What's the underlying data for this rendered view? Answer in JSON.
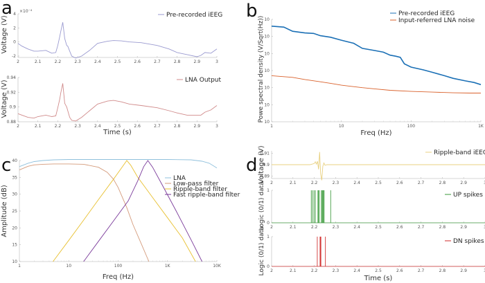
{
  "chart_data": [
    {
      "id": "a1",
      "panel_letter": "a",
      "type": "line",
      "ylabel": "Voltage (V)",
      "xlabel": "",
      "exponent_label": "×10⁻⁴",
      "xlim": [
        2,
        3
      ],
      "ylim": [
        -2.2,
        4
      ],
      "xticks": [
        2,
        2.1,
        2.2,
        2.3,
        2.4,
        2.5,
        2.6,
        2.7,
        2.8,
        2.9,
        3
      ],
      "yticks": [
        -2,
        0,
        2,
        4
      ],
      "legend": "top-right",
      "series": [
        {
          "name": "Pre-recorded iEEG",
          "color": "#9a9ad0",
          "x": [
            2.0,
            2.02,
            2.05,
            2.08,
            2.1,
            2.14,
            2.17,
            2.19,
            2.2,
            2.21,
            2.215,
            2.225,
            2.235,
            2.245,
            2.25,
            2.26,
            2.27,
            2.29,
            2.32,
            2.36,
            2.4,
            2.45,
            2.48,
            2.52,
            2.56,
            2.62,
            2.7,
            2.76,
            2.8,
            2.85,
            2.9,
            2.92,
            2.94,
            2.97,
            3.0
          ],
          "y": [
            -0.2,
            -0.6,
            -1.0,
            -1.3,
            -1.3,
            -1.2,
            -1.6,
            -1.5,
            -0.5,
            0.8,
            1.5,
            2.8,
            0.5,
            -0.5,
            -0.6,
            -1.3,
            -2.0,
            -2.3,
            -2.0,
            -1.2,
            -0.2,
            0.1,
            0.2,
            0.15,
            0.0,
            -0.1,
            -0.5,
            -1.0,
            -1.5,
            -1.8,
            -2.1,
            -1.9,
            -1.5,
            -1.6,
            -1.0
          ]
        }
      ]
    },
    {
      "id": "a2",
      "panel_letter": "",
      "type": "line",
      "ylabel": "Voltage (V)",
      "xlabel": "Time (s)",
      "xlim": [
        2,
        3
      ],
      "ylim": [
        0.88,
        0.94
      ],
      "xticks": [
        2,
        2.1,
        2.2,
        2.3,
        2.4,
        2.5,
        2.6,
        2.7,
        2.8,
        2.9,
        3
      ],
      "yticks": [
        0.88,
        0.9,
        0.92,
        0.94
      ],
      "legend": "top-right",
      "series": [
        {
          "name": "LNA Output",
          "color": "#d08a8a",
          "x": [
            2.0,
            2.02,
            2.05,
            2.08,
            2.1,
            2.14,
            2.17,
            2.19,
            2.2,
            2.21,
            2.215,
            2.225,
            2.235,
            2.245,
            2.25,
            2.26,
            2.27,
            2.29,
            2.32,
            2.36,
            2.4,
            2.45,
            2.48,
            2.52,
            2.56,
            2.62,
            2.7,
            2.76,
            2.8,
            2.85,
            2.9,
            2.92,
            2.94,
            2.97,
            3.0
          ],
          "y": [
            0.891,
            0.889,
            0.886,
            0.885,
            0.887,
            0.889,
            0.887,
            0.888,
            0.899,
            0.911,
            0.919,
            0.932,
            0.905,
            0.9,
            0.895,
            0.886,
            0.882,
            0.881,
            0.886,
            0.895,
            0.904,
            0.908,
            0.909,
            0.907,
            0.904,
            0.902,
            0.899,
            0.895,
            0.892,
            0.889,
            0.889,
            0.889,
            0.893,
            0.896,
            0.902
          ]
        }
      ]
    },
    {
      "id": "b",
      "panel_letter": "b",
      "type": "line",
      "xscale": "log",
      "yscale": "log",
      "ylabel": "Powe spectral density (V/Sqrt(Hz))",
      "xlabel": "Freq (Hz)",
      "xlim": [
        1,
        1000
      ],
      "ylim": [
        1e-08,
        0.01
      ],
      "xticks": [
        1,
        10,
        100,
        1000
      ],
      "xtick_labels": [
        "1",
        "10",
        "100",
        "1K"
      ],
      "yticks": [
        1e-08,
        1e-07,
        1e-06,
        1e-05,
        0.0001,
        0.001,
        0.01
      ],
      "ytick_labels": [
        "10",
        "10",
        "10",
        "10",
        "10",
        "10",
        "10"
      ],
      "legend": "top-right",
      "series": [
        {
          "name": "Pre-recorded iEEG",
          "color": "#1a6fb5",
          "x": [
            1,
            1.5,
            2,
            3,
            4,
            5,
            7,
            10,
            15,
            20,
            30,
            40,
            50,
            60,
            70,
            80,
            100,
            150,
            200,
            300,
            400,
            600,
            800,
            1000
          ],
          "y": [
            0.004,
            0.0035,
            0.002,
            0.0016,
            0.0015,
            0.0011,
            0.0009,
            0.0006,
            0.0004,
            0.0002,
            0.00015,
            0.00012,
            8e-05,
            7e-05,
            6e-05,
            2.5e-05,
            1.6e-05,
            1.1e-05,
            8e-06,
            5e-06,
            3.5e-06,
            2.5e-06,
            2e-06,
            1.5e-06
          ]
        },
        {
          "name": "Input-referred LNA noise",
          "color": "#d9602a",
          "x": [
            1,
            2,
            3,
            5,
            7,
            10,
            20,
            30,
            50,
            100,
            200,
            400,
            700,
            1000
          ],
          "y": [
            5e-06,
            4e-06,
            3e-06,
            2.2e-06,
            1.8e-06,
            1.4e-06,
            1e-06,
            8.5e-07,
            7e-07,
            6e-07,
            5.5e-07,
            5e-07,
            4.8e-07,
            4.8e-07
          ]
        }
      ]
    },
    {
      "id": "c",
      "panel_letter": "c",
      "type": "line",
      "xscale": "log",
      "ylabel": "Amplitude (dB)",
      "xlabel": "Freq (Hz)",
      "xlim": [
        1,
        10000
      ],
      "ylim": [
        10,
        40
      ],
      "xticks": [
        1,
        10,
        100,
        1000,
        10000
      ],
      "xtick_labels": [
        "1",
        "10",
        "100",
        "1K",
        "10K"
      ],
      "yticks": [
        10,
        15,
        20,
        25,
        30,
        35,
        40
      ],
      "legend": "right",
      "series": [
        {
          "name": "LNA",
          "color": "#8fc0dc",
          "x": [
            1,
            1.5,
            2,
            3,
            5,
            10,
            100,
            1000,
            3000,
            5000,
            7000,
            10000
          ],
          "y": [
            38.2,
            39.2,
            39.7,
            40.0,
            40.2,
            40.3,
            40.3,
            40.3,
            40.2,
            39.8,
            39.2,
            37.8
          ]
        },
        {
          "name": "Low-pass filter",
          "color": "#d49a7a",
          "x": [
            1,
            1.5,
            2,
            3,
            5,
            10,
            20,
            40,
            60,
            80,
            100,
            150,
            200,
            300,
            420
          ],
          "y": [
            37.2,
            38.3,
            38.7,
            38.9,
            39.0,
            39.0,
            38.9,
            38.0,
            36.5,
            34.5,
            32.0,
            26.0,
            21.0,
            15.0,
            10.0
          ]
        },
        {
          "name": "Ripple-band filter",
          "color": "#e8c030",
          "x": [
            4.8,
            10,
            20,
            40,
            80,
            120,
            150,
            180,
            250,
            500,
            1000,
            2000,
            3700
          ],
          "y": [
            10,
            16.3,
            22.3,
            28.4,
            34.4,
            38.0,
            40.0,
            38.6,
            35.0,
            29.0,
            23.0,
            17.0,
            10.0
          ]
        },
        {
          "name": "Fast ripple-band filter",
          "color": "#7a3a9a",
          "x": [
            20,
            40,
            80,
            160,
            250,
            330,
            400,
            500,
            800,
            1500,
            3000,
            5000
          ],
          "y": [
            10,
            16.0,
            22.0,
            28.0,
            34.0,
            38.2,
            40.0,
            38.0,
            32.5,
            25.0,
            16.5,
            10.0
          ]
        }
      ]
    },
    {
      "id": "d1",
      "panel_letter": "d",
      "type": "line",
      "ylabel": "Voltage (V)",
      "xlabel": "",
      "xlim": [
        2,
        3
      ],
      "ylim": [
        0.888,
        0.912
      ],
      "xticks": [
        2,
        2.1,
        2.2,
        2.3,
        2.4,
        2.5,
        2.6,
        2.7,
        2.8,
        2.9,
        3
      ],
      "yticks": [
        0.89,
        0.9,
        0.91
      ],
      "legend": "top-right",
      "series": [
        {
          "name": "Ripple-band iEEG",
          "color": "#e8d080",
          "x": [
            2.0,
            2.18,
            2.19,
            2.2,
            2.205,
            2.21,
            2.215,
            2.22,
            2.225,
            2.23,
            2.235,
            2.24,
            2.245,
            2.25,
            2.26,
            2.3,
            3.0
          ],
          "y": [
            0.9,
            0.9,
            0.9005,
            0.901,
            0.9025,
            0.9005,
            0.903,
            0.896,
            0.911,
            0.892,
            0.8865,
            0.8985,
            0.9015,
            0.8995,
            0.9,
            0.9,
            0.9
          ]
        }
      ]
    },
    {
      "id": "d2",
      "panel_letter": "",
      "type": "spikes",
      "ylabel": "Logic (0/1) data",
      "xlabel": "",
      "xlim": [
        2,
        3
      ],
      "ylim": [
        0,
        1
      ],
      "xticks": [
        2,
        2.1,
        2.2,
        2.3,
        2.4,
        2.5,
        2.6,
        2.7,
        2.8,
        2.9,
        3
      ],
      "yticks": [
        0,
        1
      ],
      "legend": "top-right",
      "series": [
        {
          "name": "UP spikes",
          "color": "#3a9a3a",
          "x": [
            2.186,
            2.192,
            2.199,
            2.205,
            2.217,
            2.22,
            2.223,
            2.233,
            2.237,
            2.24,
            2.243,
            2.246,
            2.277
          ]
        }
      ]
    },
    {
      "id": "d3",
      "panel_letter": "",
      "type": "spikes",
      "ylabel": "Logic (0/1) data",
      "xlabel": "Time (s)",
      "xlim": [
        2,
        3
      ],
      "ylim": [
        0,
        1
      ],
      "xticks": [
        2,
        2.1,
        2.2,
        2.3,
        2.4,
        2.5,
        2.6,
        2.7,
        2.8,
        2.9,
        3
      ],
      "yticks": [
        0,
        1
      ],
      "legend": "top-right",
      "series": [
        {
          "name": "DN spikes",
          "color": "#d02a2a",
          "x": [
            2.214,
            2.227,
            2.229,
            2.231,
            2.252
          ]
        }
      ]
    }
  ]
}
